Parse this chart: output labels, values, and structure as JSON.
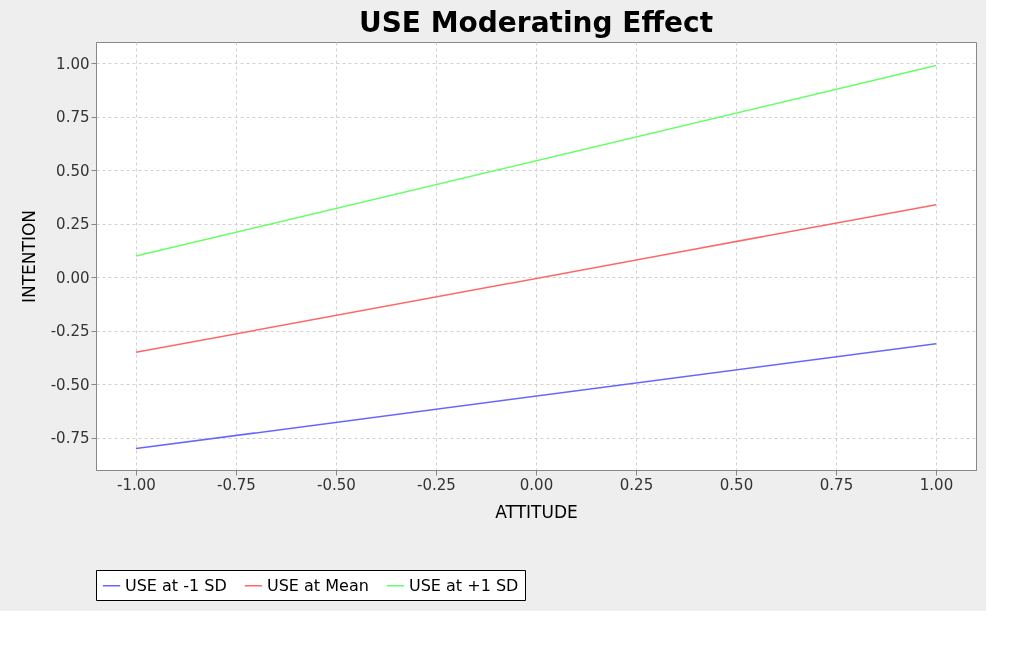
{
  "chart_data": {
    "type": "line",
    "title": "USE Moderating Effect",
    "xlabel": "ATTITUDE",
    "ylabel": "INTENTION",
    "x": [
      -1.0,
      1.0
    ],
    "series": [
      {
        "name": "USE at -1 SD",
        "color": "#6666ff",
        "values": [
          -0.8,
          -0.31
        ]
      },
      {
        "name": "USE at Mean",
        "color": "#ff6666",
        "values": [
          -0.35,
          0.34
        ]
      },
      {
        "name": "USE at +1 SD",
        "color": "#66ff66",
        "values": [
          0.1,
          0.99
        ]
      }
    ],
    "xlim": [
      -1.1,
      1.1
    ],
    "xticks": [
      {
        "value": -1,
        "label": "-1.00"
      },
      {
        "value": -0.75,
        "label": "-0.75"
      },
      {
        "value": -0.5,
        "label": "-0.50"
      },
      {
        "value": -0.25,
        "label": "-0.25"
      },
      {
        "value": 0,
        "label": "0.00"
      },
      {
        "value": 0.25,
        "label": "0.25"
      },
      {
        "value": 0.5,
        "label": "0.50"
      },
      {
        "value": 0.75,
        "label": "0.75"
      },
      {
        "value": 1,
        "label": "1.00"
      }
    ],
    "ylim": [
      -0.9,
      1.1
    ],
    "yticks": [
      {
        "value": -0.75,
        "label": "-0.75"
      },
      {
        "value": -0.5,
        "label": "-0.50"
      },
      {
        "value": -0.25,
        "label": "-0.25"
      },
      {
        "value": 0,
        "label": "0.00"
      },
      {
        "value": 0.25,
        "label": "0.25"
      },
      {
        "value": 0.5,
        "label": "0.50"
      },
      {
        "value": 0.75,
        "label": "0.75"
      },
      {
        "value": 1,
        "label": "1.00"
      }
    ],
    "grid": true,
    "legend": "bottom",
    "marker": "none",
    "line_style": "solid"
  }
}
